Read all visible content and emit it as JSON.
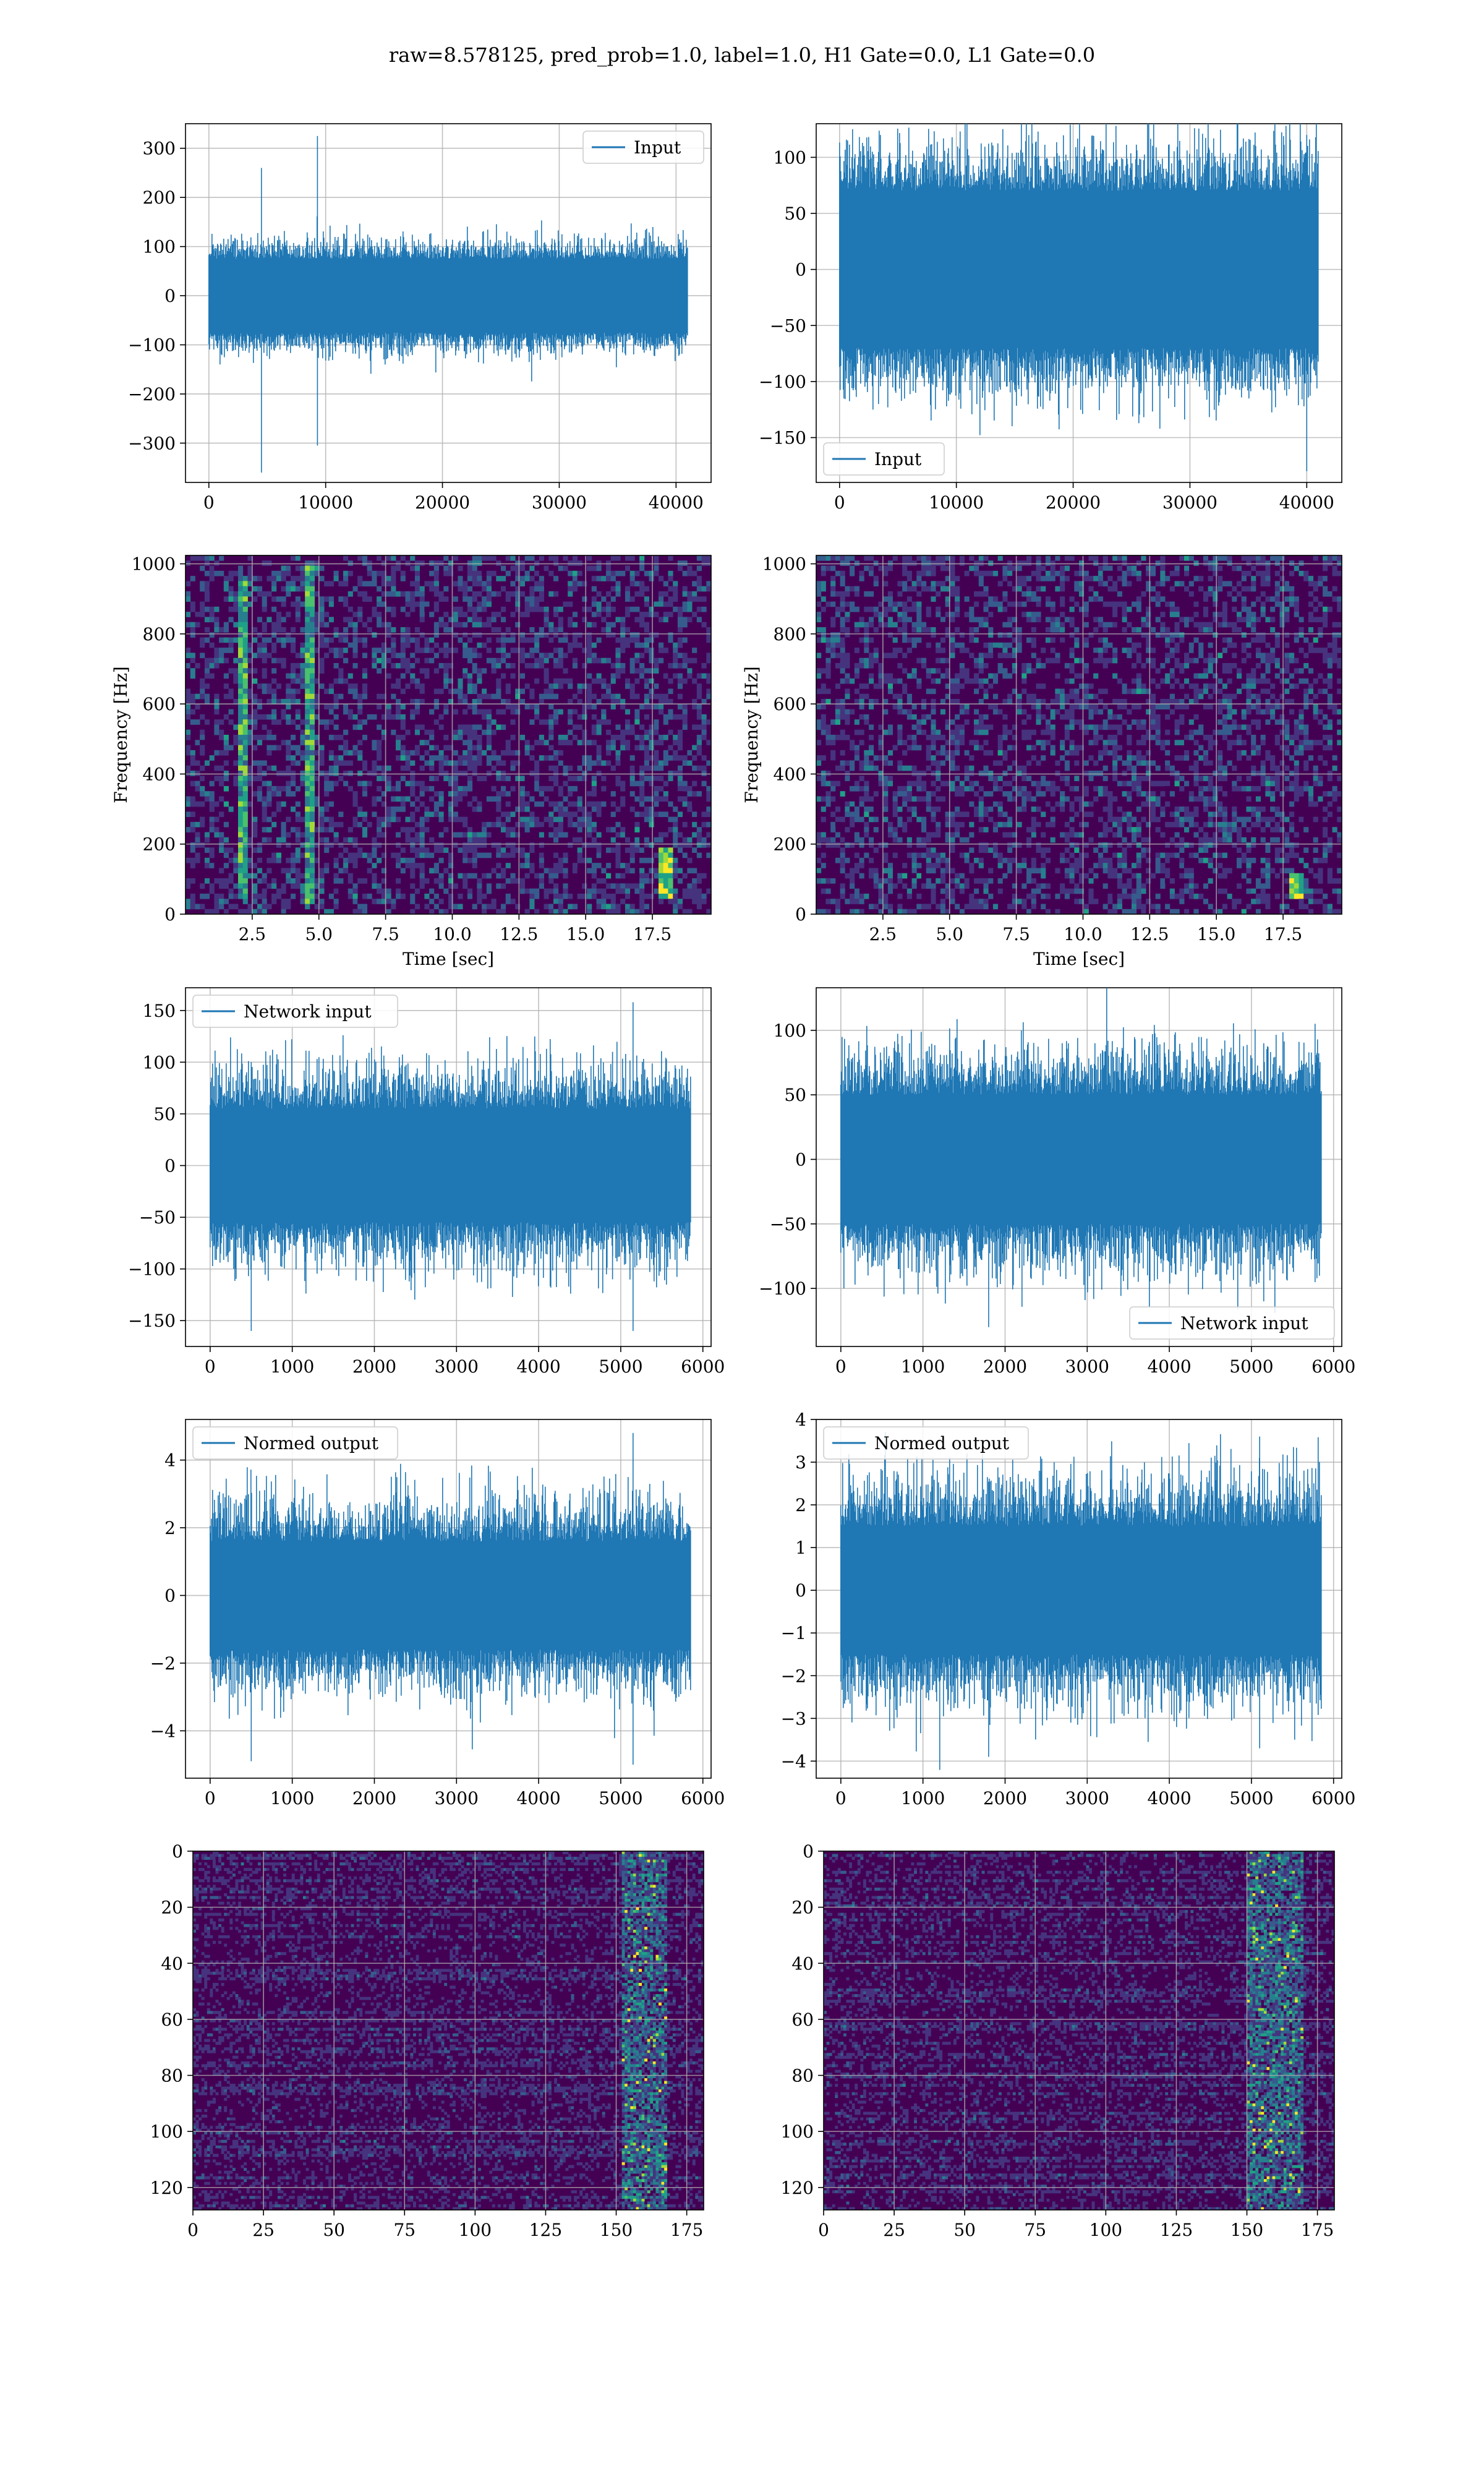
{
  "title": "raw=8.578125, pred_prob=1.0, label=1.0, H1 Gate=0.0, L1 Gate=0.0",
  "colors": {
    "line": "#1f77b4",
    "grid": "#b0b0b0",
    "viridis_low": "#440154",
    "viridis_mid": "#21918c",
    "viridis_high": "#fde725"
  },
  "chart_data": [
    {
      "id": "input-h1",
      "type": "line",
      "title": "",
      "xlabel": "",
      "ylabel": "",
      "xlim": [
        -2000,
        43000
      ],
      "ylim": [
        -380,
        350
      ],
      "xticks": [
        0,
        10000,
        20000,
        30000,
        40000
      ],
      "yticks": [
        -300,
        -200,
        -100,
        0,
        100,
        200,
        300
      ],
      "grid": true,
      "legend": "upper right",
      "series": [
        {
          "name": "Input",
          "x_range": [
            0,
            41000
          ],
          "envelope": 75,
          "spread": 45,
          "glitches": [
            {
              "x": 4500,
              "high": 260,
              "low": -360
            },
            {
              "x": 9300,
              "high": 325,
              "low": -305
            }
          ]
        }
      ]
    },
    {
      "id": "input-l1",
      "type": "line",
      "title": "",
      "xlabel": "",
      "ylabel": "",
      "xlim": [
        -2000,
        43000
      ],
      "ylim": [
        -190,
        130
      ],
      "xticks": [
        0,
        10000,
        20000,
        30000,
        40000
      ],
      "yticks": [
        -150,
        -100,
        -50,
        0,
        50,
        100
      ],
      "grid": true,
      "legend": "lower left",
      "series": [
        {
          "name": "Input",
          "x_range": [
            0,
            41000
          ],
          "envelope": 70,
          "spread": 45,
          "glitches": [
            {
              "x": 40000,
              "high": 120,
              "low": -180
            }
          ]
        }
      ]
    },
    {
      "id": "spectrogram-h1",
      "type": "heatmap",
      "title": "",
      "xlabel": "Time [sec]",
      "ylabel": "Frequency [Hz]",
      "xlim": [
        0,
        19.7
      ],
      "ylim": [
        0,
        1024
      ],
      "xticks": [
        2.5,
        5.0,
        7.5,
        10.0,
        12.5,
        15.0,
        17.5
      ],
      "xtick_labels": [
        "2.5",
        "5.0",
        "7.5",
        "10.0",
        "12.5",
        "15.0",
        "17.5"
      ],
      "yticks": [
        0,
        200,
        400,
        600,
        800,
        1000
      ],
      "grid": true,
      "features": [
        {
          "kind": "vertical-streak",
          "x": 2.2,
          "y_range": [
            40,
            960
          ]
        },
        {
          "kind": "vertical-streak",
          "x": 4.6,
          "y_range": [
            30,
            1000
          ]
        },
        {
          "kind": "chirp",
          "x": 18.0,
          "y_range": [
            40,
            190
          ]
        }
      ]
    },
    {
      "id": "spectrogram-l1",
      "type": "heatmap",
      "title": "",
      "xlabel": "Time [sec]",
      "ylabel": "Frequency [Hz]",
      "xlim": [
        0,
        19.7
      ],
      "ylim": [
        0,
        1024
      ],
      "xticks": [
        2.5,
        5.0,
        7.5,
        10.0,
        12.5,
        15.0,
        17.5
      ],
      "xtick_labels": [
        "2.5",
        "5.0",
        "7.5",
        "10.0",
        "12.5",
        "15.0",
        "17.5"
      ],
      "yticks": [
        0,
        200,
        400,
        600,
        800,
        1000
      ],
      "grid": true,
      "features": [
        {
          "kind": "chirp",
          "x": 18.0,
          "y_range": [
            40,
            120
          ]
        }
      ]
    },
    {
      "id": "network-input-h1",
      "type": "line",
      "title": "",
      "xlabel": "",
      "ylabel": "",
      "xlim": [
        -300,
        6100
      ],
      "ylim": [
        -175,
        172
      ],
      "xticks": [
        0,
        1000,
        2000,
        3000,
        4000,
        5000,
        6000
      ],
      "yticks": [
        -150,
        -100,
        -50,
        0,
        50,
        100,
        150
      ],
      "grid": true,
      "legend": "upper left",
      "series": [
        {
          "name": "Network input",
          "x_range": [
            0,
            5850
          ],
          "envelope": 55,
          "spread": 45,
          "glitches": [
            {
              "x": 500,
              "high": 100,
              "low": -160
            },
            {
              "x": 5150,
              "high": 158,
              "low": -160
            },
            {
              "x": 4900,
              "high": 110,
              "low": -110
            }
          ]
        }
      ]
    },
    {
      "id": "network-input-l1",
      "type": "line",
      "title": "",
      "xlabel": "",
      "ylabel": "",
      "xlim": [
        -300,
        6100
      ],
      "ylim": [
        -145,
        133
      ],
      "xticks": [
        0,
        1000,
        2000,
        3000,
        4000,
        5000,
        6000
      ],
      "yticks": [
        -100,
        -50,
        0,
        50,
        100
      ],
      "grid": true,
      "legend": "lower right",
      "series": [
        {
          "name": "Network input",
          "x_range": [
            0,
            5850
          ],
          "envelope": 50,
          "spread": 40,
          "glitches": [
            {
              "x": 1800,
              "high": 60,
              "low": -130
            },
            {
              "x": 5150,
              "high": 90,
              "low": -110
            }
          ]
        }
      ]
    },
    {
      "id": "normed-output-h1",
      "type": "line",
      "title": "",
      "xlabel": "",
      "ylabel": "",
      "xlim": [
        -300,
        6100
      ],
      "ylim": [
        -5.4,
        5.2
      ],
      "xticks": [
        0,
        1000,
        2000,
        3000,
        4000,
        5000,
        6000
      ],
      "yticks": [
        -4,
        -2,
        0,
        2,
        4
      ],
      "grid": true,
      "legend": "upper left",
      "series": [
        {
          "name": "Normed output",
          "x_range": [
            0,
            5850
          ],
          "envelope": 1.6,
          "spread": 1.4,
          "glitches": [
            {
              "x": 500,
              "high": 3.0,
              "low": -4.9
            },
            {
              "x": 5150,
              "high": 4.8,
              "low": -5.0
            }
          ]
        }
      ]
    },
    {
      "id": "normed-output-l1",
      "type": "line",
      "title": "",
      "xlabel": "",
      "ylabel": "",
      "xlim": [
        -300,
        6100
      ],
      "ylim": [
        -4.4,
        4.0
      ],
      "xticks": [
        0,
        1000,
        2000,
        3000,
        4000,
        5000,
        6000
      ],
      "yticks": [
        -4,
        -3,
        -2,
        -1,
        0,
        1,
        2,
        3,
        4
      ],
      "grid": true,
      "legend": "upper left",
      "series": [
        {
          "name": "Normed output",
          "x_range": [
            0,
            5850
          ],
          "envelope": 1.5,
          "spread": 1.3,
          "glitches": [
            {
              "x": 1800,
              "high": 2.0,
              "low": -3.9
            },
            {
              "x": 5100,
              "high": 3.6,
              "low": -3.7
            }
          ]
        }
      ]
    },
    {
      "id": "feature-map-h1",
      "type": "heatmap",
      "title": "",
      "xlabel": "",
      "ylabel": "",
      "xlim": [
        0,
        181
      ],
      "ylim": [
        128,
        0
      ],
      "xticks": [
        0,
        25,
        50,
        75,
        100,
        125,
        150,
        175
      ],
      "yticks": [
        0,
        20,
        40,
        60,
        80,
        100,
        120
      ],
      "grid": true,
      "features": [
        {
          "kind": "hot-band",
          "x_range": [
            152,
            168
          ]
        }
      ]
    },
    {
      "id": "feature-map-l1",
      "type": "heatmap",
      "title": "",
      "xlabel": "",
      "ylabel": "",
      "xlim": [
        0,
        181
      ],
      "ylim": [
        128,
        0
      ],
      "xticks": [
        0,
        25,
        50,
        75,
        100,
        125,
        150,
        175
      ],
      "yticks": [
        0,
        20,
        40,
        60,
        80,
        100,
        120
      ],
      "grid": true,
      "features": [
        {
          "kind": "hot-band",
          "x_range": [
            150,
            170
          ]
        }
      ]
    }
  ]
}
